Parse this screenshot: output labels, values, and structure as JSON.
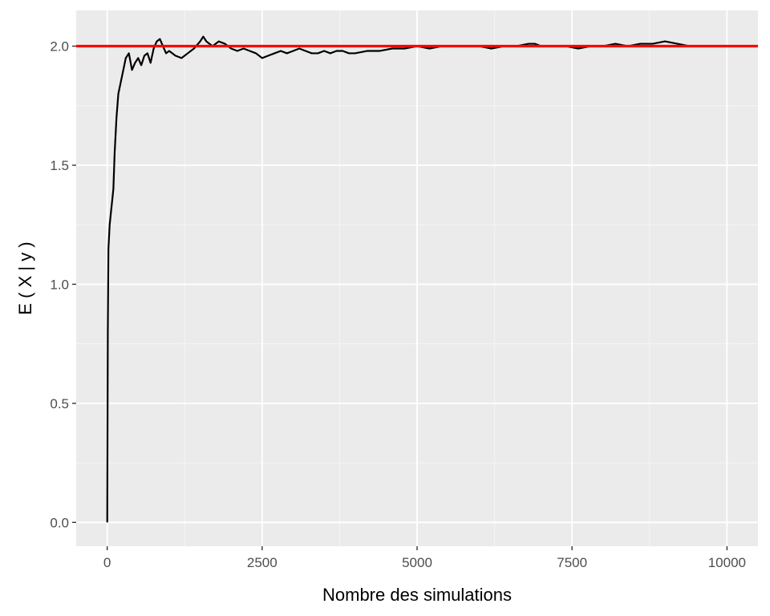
{
  "chart_data": {
    "type": "line",
    "title": "",
    "xlabel": "Nombre des simulations",
    "ylabel": "E ( X | y )",
    "xlim": [
      -500,
      10500
    ],
    "ylim": [
      -0.1,
      2.15
    ],
    "xticks": [
      0,
      2500,
      5000,
      7500,
      10000
    ],
    "xtick_labels": [
      "0",
      "2500",
      "5000",
      "7500",
      "10000"
    ],
    "yticks": [
      0.0,
      0.5,
      1.0,
      1.5,
      2.0
    ],
    "ytick_labels": [
      "0.0",
      "0.5",
      "1.0",
      "1.5",
      "2.0"
    ],
    "grid": true,
    "series": [
      {
        "color": "#000000",
        "x": [
          1,
          10,
          20,
          40,
          60,
          80,
          100,
          120,
          150,
          180,
          220,
          260,
          300,
          350,
          400,
          450,
          500,
          550,
          600,
          650,
          700,
          750,
          800,
          850,
          900,
          950,
          1000,
          1100,
          1200,
          1300,
          1400,
          1500,
          1550,
          1600,
          1700,
          1800,
          1900,
          2000,
          2100,
          2200,
          2300,
          2400,
          2500,
          2600,
          2700,
          2800,
          2900,
          3000,
          3100,
          3200,
          3300,
          3400,
          3500,
          3600,
          3700,
          3800,
          3900,
          4000,
          4200,
          4400,
          4600,
          4800,
          5000,
          5200,
          5400,
          5600,
          5800,
          6000,
          6200,
          6400,
          6600,
          6800,
          6900,
          7000,
          7200,
          7400,
          7600,
          7800,
          8000,
          8200,
          8400,
          8600,
          8800,
          9000,
          9200,
          9400,
          9600,
          9800,
          10000
        ],
        "y": [
          0.0,
          0.8,
          1.15,
          1.25,
          1.3,
          1.35,
          1.4,
          1.55,
          1.7,
          1.8,
          1.85,
          1.9,
          1.95,
          1.97,
          1.9,
          1.93,
          1.95,
          1.92,
          1.96,
          1.97,
          1.93,
          1.99,
          2.02,
          2.03,
          2.0,
          1.97,
          1.98,
          1.96,
          1.95,
          1.97,
          1.99,
          2.02,
          2.04,
          2.02,
          2.0,
          2.02,
          2.01,
          1.99,
          1.98,
          1.99,
          1.98,
          1.97,
          1.95,
          1.96,
          1.97,
          1.98,
          1.97,
          1.98,
          1.99,
          1.98,
          1.97,
          1.97,
          1.98,
          1.97,
          1.98,
          1.98,
          1.97,
          1.97,
          1.98,
          1.98,
          1.99,
          1.99,
          2.0,
          1.99,
          2.0,
          2.0,
          2.0,
          2.0,
          1.99,
          2.0,
          2.0,
          2.01,
          2.01,
          2.0,
          2.0,
          2.0,
          1.99,
          2.0,
          2.0,
          2.01,
          2.0,
          2.01,
          2.01,
          2.02,
          2.01,
          2.0,
          2.0,
          2.0,
          2.0
        ]
      }
    ],
    "reference_line": {
      "y": 2.0,
      "color": "#FF0000"
    }
  },
  "colors": {
    "panel_background": "#EBEBEB",
    "grid_major": "#FFFFFF",
    "grid_minor": "#F5F5F5",
    "line": "#000000",
    "reference": "#FF0000",
    "tick_text": "#4D4D4D",
    "axis_text": "#000000"
  }
}
